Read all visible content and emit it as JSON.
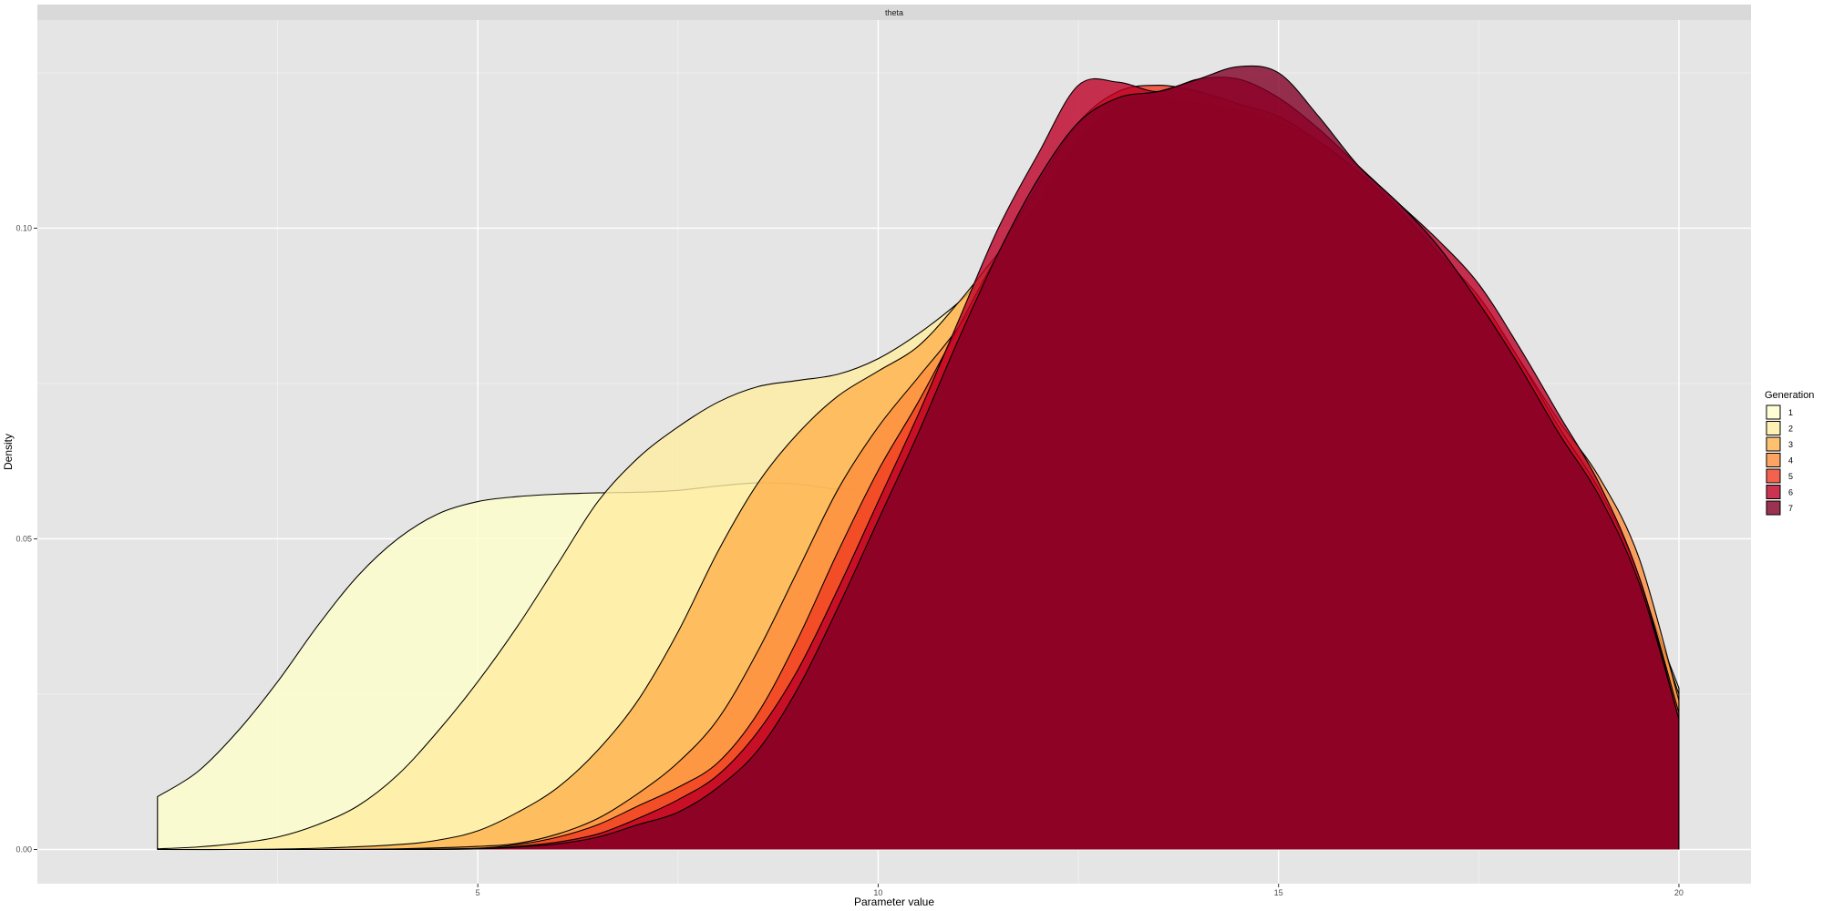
{
  "chart_data": {
    "type": "area",
    "facet_label": "theta",
    "xlabel": "Parameter value",
    "ylabel": "Density",
    "xlim": [
      -0.5,
      20.9
    ],
    "ylim": [
      -0.0055,
      0.1335
    ],
    "x_ticks": [
      5,
      10,
      15,
      20
    ],
    "x_tick_labels": [
      "5",
      "10",
      "15",
      "20"
    ],
    "y_ticks": [
      0.0,
      0.05,
      0.1
    ],
    "y_tick_labels": [
      "0.00",
      "0.05",
      "0.10"
    ],
    "grid": true,
    "legend": {
      "title": "Generation",
      "placement": "right"
    },
    "series": [
      {
        "name": "1",
        "color": "#FFFFCC",
        "x": [
          1,
          1.5,
          2,
          2.5,
          3,
          3.5,
          4,
          4.5,
          5,
          5.5,
          6,
          6.5,
          7,
          7.5,
          8,
          8.5,
          9,
          9.5,
          10,
          10.5,
          11,
          11.5,
          12,
          12.5,
          13,
          13.5,
          14,
          14.5,
          15,
          15.5,
          16,
          16.5,
          17,
          17.5,
          18,
          18.5,
          19,
          19.5,
          20
        ],
        "y": [
          0.0085,
          0.0125,
          0.019,
          0.027,
          0.036,
          0.044,
          0.05,
          0.054,
          0.056,
          0.0568,
          0.0572,
          0.0574,
          0.0575,
          0.0578,
          0.0585,
          0.059,
          0.0588,
          0.058,
          0.0585,
          0.061,
          0.067,
          0.074,
          0.082,
          0.089,
          0.094,
          0.097,
          0.098,
          0.097,
          0.095,
          0.092,
          0.088,
          0.083,
          0.078,
          0.072,
          0.065,
          0.057,
          0.048,
          0.038,
          0.025
        ]
      },
      {
        "name": "2",
        "color": "#FFEDA0",
        "x": [
          1,
          1.5,
          2,
          2.5,
          3,
          3.5,
          4,
          4.5,
          5,
          5.5,
          6,
          6.5,
          7,
          7.5,
          8,
          8.5,
          9,
          9.5,
          10,
          10.5,
          11,
          11.5,
          12,
          12.5,
          13,
          13.5,
          14,
          14.5,
          15,
          15.5,
          16,
          16.5,
          17,
          17.5,
          18,
          18.5,
          19,
          19.5,
          20
        ],
        "y": [
          0.0001,
          0.0004,
          0.001,
          0.002,
          0.004,
          0.007,
          0.012,
          0.019,
          0.027,
          0.036,
          0.046,
          0.056,
          0.063,
          0.068,
          0.072,
          0.0745,
          0.0755,
          0.0765,
          0.079,
          0.083,
          0.088,
          0.094,
          0.099,
          0.103,
          0.106,
          0.108,
          0.109,
          0.109,
          0.108,
          0.105,
          0.101,
          0.096,
          0.09,
          0.083,
          0.074,
          0.065,
          0.054,
          0.042,
          0.026
        ]
      },
      {
        "name": "3",
        "color": "#FEB24C",
        "x": [
          1,
          2,
          3,
          4,
          4.5,
          5,
          5.5,
          6,
          6.5,
          7,
          7.5,
          8,
          8.5,
          9,
          9.5,
          10,
          10.5,
          11,
          11.5,
          12,
          12.5,
          13,
          13.5,
          14,
          14.5,
          15,
          15.5,
          16,
          16.5,
          17,
          17.5,
          18,
          18.5,
          19,
          19.5,
          20
        ],
        "y": [
          0,
          0,
          0.0002,
          0.0008,
          0.0015,
          0.003,
          0.006,
          0.01,
          0.016,
          0.024,
          0.035,
          0.048,
          0.059,
          0.067,
          0.073,
          0.077,
          0.081,
          0.088,
          0.096,
          0.104,
          0.11,
          0.113,
          0.114,
          0.113,
          0.112,
          0.112,
          0.111,
          0.107,
          0.101,
          0.094,
          0.086,
          0.076,
          0.065,
          0.055,
          0.043,
          0.025
        ]
      },
      {
        "name": "4",
        "color": "#FD8D3C",
        "x": [
          1,
          2,
          3,
          4,
          5,
          5.5,
          6,
          6.5,
          7,
          7.5,
          8,
          8.5,
          9,
          9.5,
          10,
          10.5,
          11,
          11.5,
          12,
          12.5,
          13,
          13.5,
          14,
          14.5,
          15,
          15.5,
          16,
          16.5,
          17,
          17.5,
          18,
          18.5,
          19,
          19.5,
          20
        ],
        "y": [
          0,
          0,
          0,
          0.0001,
          0.0005,
          0.001,
          0.0025,
          0.005,
          0.009,
          0.014,
          0.021,
          0.032,
          0.045,
          0.058,
          0.068,
          0.076,
          0.084,
          0.094,
          0.104,
          0.114,
          0.12,
          0.121,
          0.12,
          0.119,
          0.117,
          0.114,
          0.109,
          0.103,
          0.096,
          0.088,
          0.079,
          0.069,
          0.06,
          0.047,
          0.024
        ]
      },
      {
        "name": "5",
        "color": "#F03B20",
        "x": [
          1,
          2,
          3,
          4,
          5,
          5.5,
          6,
          6.5,
          7,
          7.5,
          8,
          8.5,
          9,
          9.5,
          10,
          10.5,
          11,
          11.5,
          12,
          12.5,
          13,
          13.5,
          14,
          14.5,
          15,
          15.5,
          16,
          16.5,
          17,
          17.5,
          18,
          18.5,
          19,
          19.5,
          20
        ],
        "y": [
          0,
          0,
          0,
          0,
          0.0002,
          0.0008,
          0.002,
          0.004,
          0.007,
          0.01,
          0.014,
          0.022,
          0.034,
          0.048,
          0.061,
          0.072,
          0.084,
          0.096,
          0.107,
          0.117,
          0.122,
          0.123,
          0.122,
          0.12,
          0.118,
          0.114,
          0.109,
          0.103,
          0.096,
          0.089,
          0.079,
          0.068,
          0.058,
          0.044,
          0.022
        ]
      },
      {
        "name": "6",
        "color": "#BD0026",
        "x": [
          1,
          2,
          3,
          4,
          5,
          5.5,
          6,
          6.5,
          7,
          7.5,
          8,
          8.5,
          9,
          9.5,
          10,
          10.5,
          11,
          11.5,
          12,
          12.5,
          13,
          13.5,
          14,
          14.5,
          15,
          15.5,
          16,
          16.5,
          17,
          17.5,
          18,
          18.5,
          19,
          19.5,
          20
        ],
        "y": [
          0,
          0,
          0,
          0,
          0.0001,
          0.0005,
          0.0012,
          0.0025,
          0.005,
          0.008,
          0.012,
          0.019,
          0.029,
          0.042,
          0.056,
          0.07,
          0.085,
          0.1,
          0.112,
          0.123,
          0.1235,
          0.122,
          0.124,
          0.124,
          0.121,
          0.116,
          0.11,
          0.104,
          0.098,
          0.091,
          0.081,
          0.07,
          0.059,
          0.044,
          0.021
        ]
      },
      {
        "name": "7",
        "color": "#800026",
        "x": [
          1,
          2,
          3,
          4,
          5,
          5.5,
          6,
          6.5,
          7,
          7.5,
          8,
          8.5,
          9,
          9.5,
          10,
          10.5,
          11,
          11.5,
          12,
          12.5,
          13,
          13.5,
          14,
          14.5,
          15,
          15.5,
          16,
          16.5,
          17,
          17.5,
          18,
          18.5,
          19,
          19.5,
          20
        ],
        "y": [
          0,
          0,
          0,
          0,
          0.0001,
          0.0004,
          0.0009,
          0.002,
          0.004,
          0.006,
          0.01,
          0.016,
          0.026,
          0.039,
          0.053,
          0.067,
          0.082,
          0.096,
          0.108,
          0.117,
          0.121,
          0.122,
          0.124,
          0.126,
          0.125,
          0.118,
          0.11,
          0.104,
          0.097,
          0.088,
          0.078,
          0.067,
          0.057,
          0.043,
          0.021
        ]
      }
    ]
  }
}
